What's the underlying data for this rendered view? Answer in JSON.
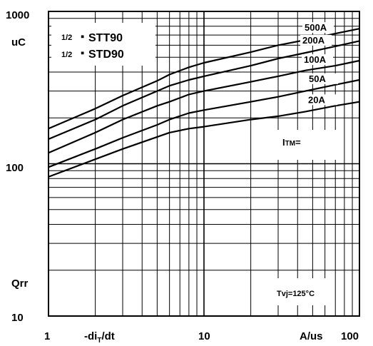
{
  "chart_data": {
    "type": "line",
    "x_scale": "log",
    "y_scale": "log",
    "xlim": [
      1,
      100
    ],
    "ylim": [
      10,
      1000
    ],
    "grid": true,
    "x_tick_labels": [
      "1",
      "10",
      "100"
    ],
    "y_tick_labels": [
      "10",
      "100",
      "1000"
    ],
    "xlabel": "-di",
    "xlabel_sub": "T",
    "xlabel_tail": "/dt",
    "xunit": "A/us",
    "yunit": "uC",
    "ylabel": "Qrr",
    "legend_title": "ITM=",
    "legend_title_main": "I",
    "legend_title_sub": "TM",
    "legend_title_tail": "=",
    "device_lines": [
      {
        "fraction": "1/2",
        "name": "STT90"
      },
      {
        "fraction": "1/2",
        "name": "STD90"
      }
    ],
    "condition": "Tvj=125°C",
    "series": [
      {
        "name": "500A",
        "x": [
          1,
          2,
          3,
          5,
          6,
          8,
          10,
          20,
          30,
          45,
          70,
          100
        ],
        "y": [
          170,
          230,
          280,
          350,
          385,
          430,
          460,
          540,
          600,
          650,
          715,
          770
        ]
      },
      {
        "name": "200A",
        "x": [
          1,
          2,
          3,
          5,
          6,
          8,
          10,
          20,
          30,
          45,
          70,
          100
        ],
        "y": [
          145,
          195,
          240,
          300,
          325,
          355,
          375,
          440,
          490,
          535,
          590,
          640
        ]
      },
      {
        "name": "100A",
        "x": [
          1,
          2,
          3,
          5,
          6,
          8,
          10,
          20,
          30,
          45,
          70,
          100
        ],
        "y": [
          118,
          160,
          195,
          240,
          255,
          285,
          300,
          345,
          375,
          410,
          440,
          475
        ]
      },
      {
        "name": "50A",
        "x": [
          1,
          2,
          3,
          5,
          6,
          8,
          10,
          20,
          30,
          45,
          70,
          100
        ],
        "y": [
          95,
          125,
          148,
          180,
          195,
          215,
          225,
          255,
          275,
          300,
          330,
          355
        ]
      },
      {
        "name": "20A",
        "x": [
          1,
          2,
          3,
          5,
          6,
          8,
          10,
          20,
          30,
          45,
          70,
          100
        ],
        "y": [
          82,
          107,
          125,
          150,
          160,
          170,
          175,
          195,
          205,
          220,
          240,
          255
        ]
      }
    ]
  }
}
